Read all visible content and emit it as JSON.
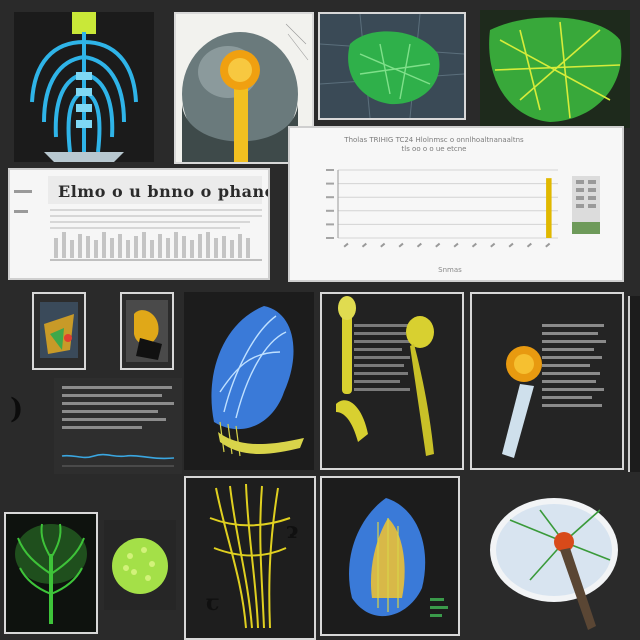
{
  "document_panel": {
    "title": "Elmo o u bnno o phanoole"
  },
  "chart_panel": {
    "title_line1": "Tholas  TRIHIG  TC24  Hlolnmsc  o  onnlhoaltnanaaltns",
    "title_line2": "tls  oo  o  o  ue  etcne",
    "xlabel": "Snmas"
  },
  "chart_data": {
    "type": "bar",
    "title": "",
    "xlabel": "Snmas",
    "ylabel": "",
    "categories": [
      "1",
      "2",
      "3",
      "4",
      "5",
      "6",
      "7",
      "8",
      "9",
      "10",
      "11",
      "12"
    ],
    "values": [
      0,
      0,
      0,
      0,
      0,
      0,
      0,
      0,
      0,
      0,
      0,
      88
    ],
    "ylim": [
      0,
      100
    ],
    "grid": true,
    "bar_color": "#e0b800"
  },
  "colors": {
    "background": "#2a2a2a",
    "cyan": "#30b8e8",
    "green": "#3ec43a",
    "yellow": "#d8d020",
    "orange": "#e89a10"
  }
}
